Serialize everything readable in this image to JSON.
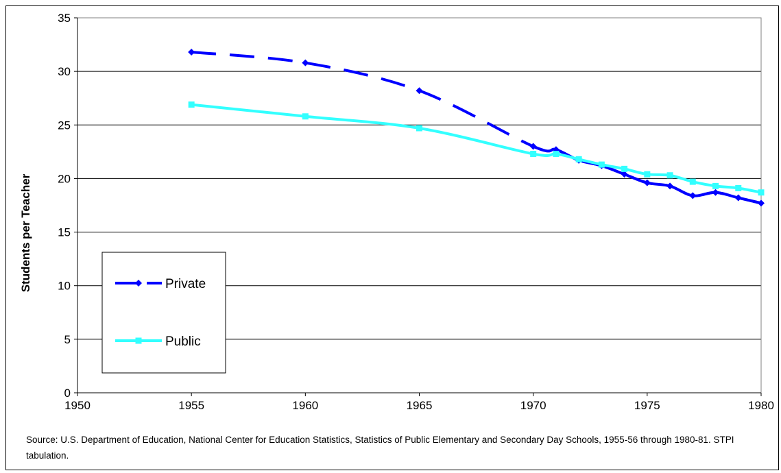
{
  "chart_data": {
    "type": "line",
    "title": "",
    "xlabel": "",
    "ylabel": "Students per Teacher",
    "xlim": [
      1950,
      1980
    ],
    "ylim": [
      0,
      35
    ],
    "x_ticks": [
      1950,
      1955,
      1960,
      1965,
      1970,
      1975,
      1980
    ],
    "y_ticks": [
      0,
      5,
      10,
      15,
      20,
      25,
      30,
      35
    ],
    "grid": "horizontal",
    "legend_position": "bottom-left",
    "series": [
      {
        "name": "Private",
        "color": "#0000ff",
        "marker": "diamond",
        "x": [
          1955,
          1960,
          1965,
          1970,
          1971,
          1972,
          1973,
          1974,
          1975,
          1976,
          1977,
          1978,
          1979,
          1980
        ],
        "values": [
          31.8,
          30.8,
          28.2,
          23.0,
          22.7,
          21.7,
          21.2,
          20.4,
          19.6,
          19.3,
          18.4,
          18.7,
          18.2,
          17.7
        ]
      },
      {
        "name": "Public",
        "color": "#33ffff",
        "marker": "square",
        "x": [
          1955,
          1960,
          1965,
          1970,
          1971,
          1972,
          1973,
          1974,
          1975,
          1976,
          1977,
          1978,
          1979,
          1980
        ],
        "values": [
          26.9,
          25.8,
          24.7,
          22.3,
          22.3,
          21.8,
          21.3,
          20.9,
          20.4,
          20.3,
          19.7,
          19.3,
          19.1,
          18.7
        ]
      }
    ],
    "source": "Source: U.S. Department of Education, National Center for Education Statistics, Statistics of Public Elementary and Secondary Day Schools, 1955-56 through 1980-81. STPI tabulation."
  }
}
